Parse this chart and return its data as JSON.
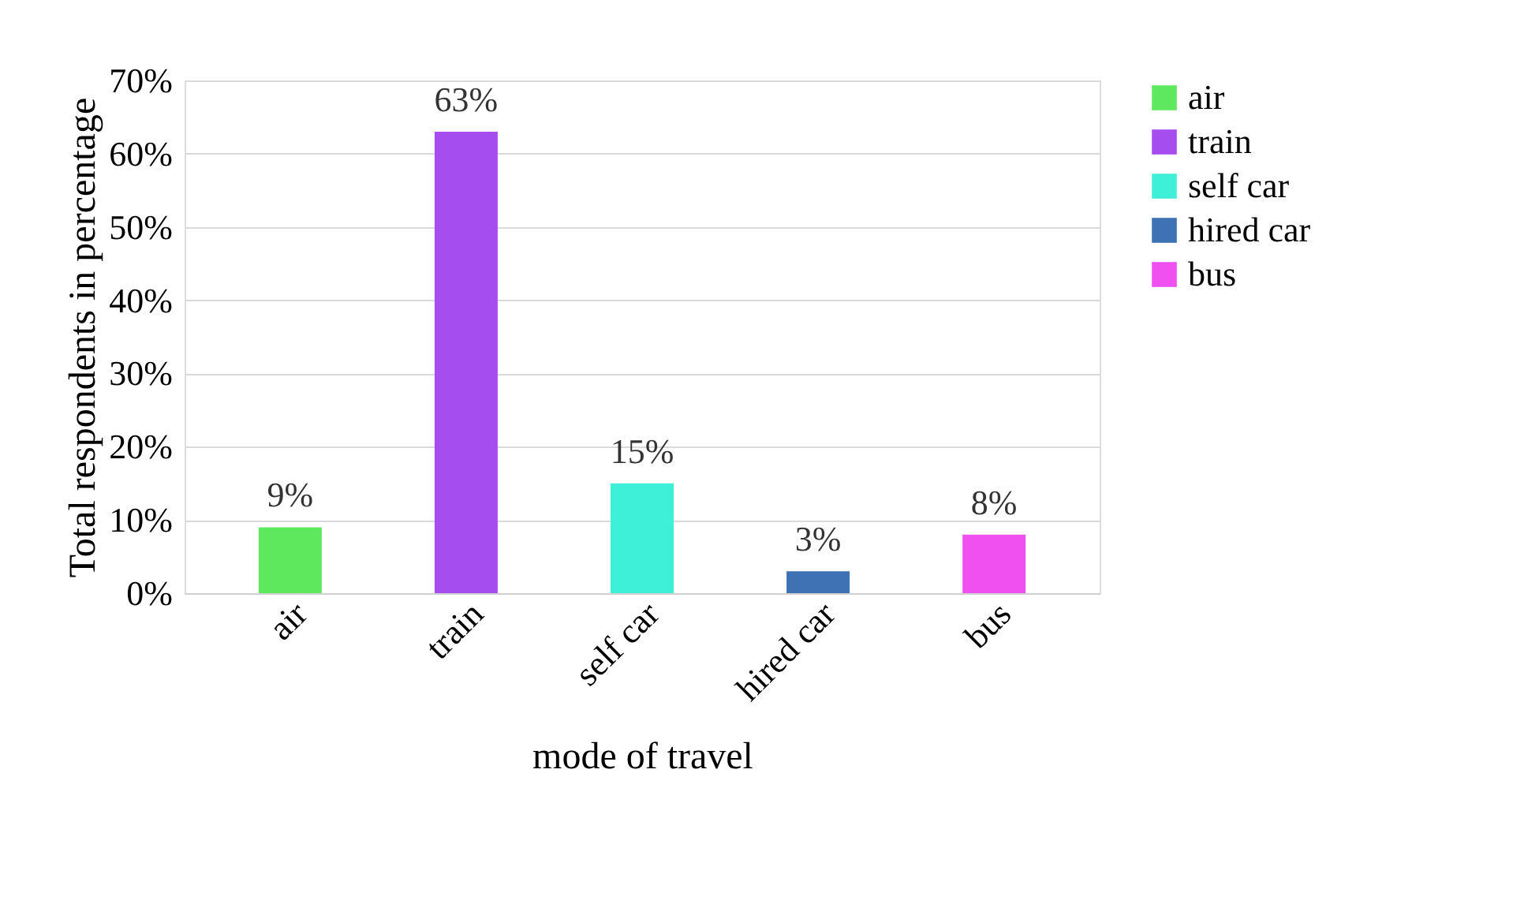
{
  "chart_data": {
    "type": "bar",
    "xlabel": "mode of travel",
    "ylabel": "Total respondents in percentage",
    "categories": [
      "air",
      "train",
      "self car",
      "hired car",
      "bus"
    ],
    "series": [
      {
        "name": "air",
        "color": "#5ee85e",
        "values": [
          9,
          null,
          null,
          null,
          null
        ],
        "value_labels": [
          "9%",
          null,
          null,
          null,
          null
        ]
      },
      {
        "name": "train",
        "color": "#a64df0",
        "values": [
          null,
          63,
          null,
          null,
          null
        ],
        "value_labels": [
          null,
          "63%",
          null,
          null,
          null
        ]
      },
      {
        "name": "self car",
        "color": "#3ef0d8",
        "values": [
          null,
          null,
          15,
          null,
          null
        ],
        "value_labels": [
          null,
          null,
          "15%",
          null,
          null
        ]
      },
      {
        "name": "hired car",
        "color": "#3f72b5",
        "values": [
          null,
          null,
          null,
          3,
          null
        ],
        "value_labels": [
          null,
          null,
          null,
          "3%",
          null
        ]
      },
      {
        "name": "bus",
        "color": "#f050f0",
        "values": [
          null,
          null,
          null,
          null,
          8
        ],
        "value_labels": [
          null,
          null,
          null,
          null,
          "8%"
        ]
      }
    ],
    "ylim": [
      0,
      70
    ],
    "yticks": [
      {
        "value": 0,
        "label": "0%"
      },
      {
        "value": 10,
        "label": "10%"
      },
      {
        "value": 20,
        "label": "20%"
      },
      {
        "value": 30,
        "label": "30%"
      },
      {
        "value": 40,
        "label": "40%"
      },
      {
        "value": 50,
        "label": "50%"
      },
      {
        "value": 60,
        "label": "60%"
      },
      {
        "value": 70,
        "label": "70%"
      }
    ],
    "grid": "y",
    "legend": "right"
  }
}
